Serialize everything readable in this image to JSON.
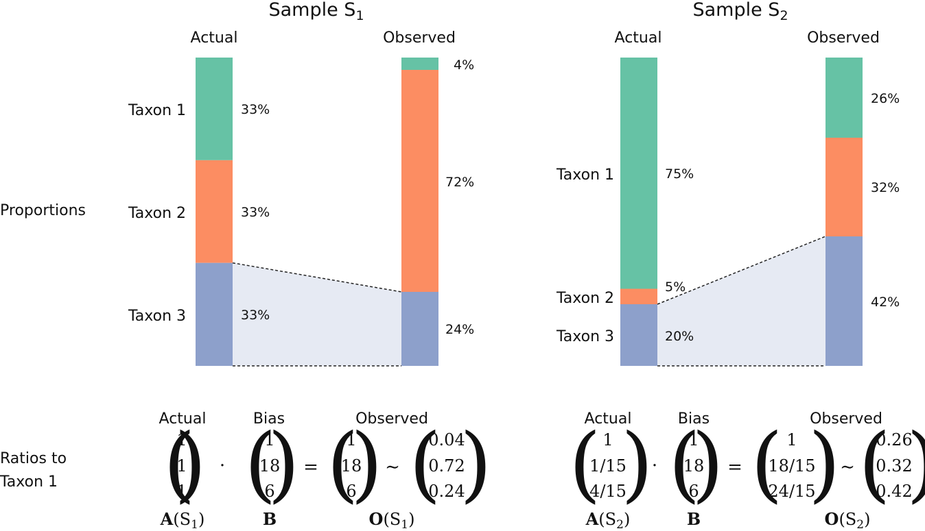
{
  "colors": {
    "taxon1": "#66c2a5",
    "taxon2": "#fc8d62",
    "taxon3": "#8da0cb",
    "shade": "#e6eaf3"
  },
  "row_labels": {
    "proportions": "Proportions",
    "ratios_line1": "Ratios to",
    "ratios_line2": "Taxon 1"
  },
  "samples": [
    {
      "title": "Sample S",
      "title_sub": "1",
      "actual_header": "Actual",
      "observed_header": "Observed",
      "taxa": [
        "Taxon 1",
        "Taxon 2",
        "Taxon 3"
      ],
      "actual_pct": [
        "33%",
        "33%",
        "33%"
      ],
      "actual_values": [
        0.333,
        0.333,
        0.334
      ],
      "observed_pct": [
        "4%",
        "72%",
        "24%"
      ],
      "observed_values": [
        0.04,
        0.72,
        0.24
      ],
      "eq": {
        "actual_header": "Actual",
        "bias_header": "Bias",
        "observed_header": "Observed",
        "actual": [
          "1",
          "1",
          "1"
        ],
        "bias": [
          "1",
          "18",
          "6"
        ],
        "observed": [
          "1",
          "18",
          "6"
        ],
        "observed_norm": [
          "0.04",
          "0.72",
          "0.24"
        ],
        "dot": "·",
        "equals": "=",
        "approx": "∼",
        "label_A": "A",
        "label_B": "B",
        "label_O": "O",
        "label_sample": "(S",
        "label_sub": "1",
        "label_close": ")"
      }
    },
    {
      "title": "Sample S",
      "title_sub": "2",
      "actual_header": "Actual",
      "observed_header": "Observed",
      "taxa": [
        "Taxon 1",
        "Taxon 2",
        "Taxon 3"
      ],
      "actual_pct": [
        "75%",
        "5%",
        "20%"
      ],
      "actual_values": [
        0.75,
        0.05,
        0.2
      ],
      "observed_pct": [
        "26%",
        "32%",
        "42%"
      ],
      "observed_values": [
        0.26,
        0.32,
        0.42
      ],
      "eq": {
        "actual_header": "Actual",
        "bias_header": "Bias",
        "observed_header": "Observed",
        "actual": [
          "1",
          "1/15",
          "4/15"
        ],
        "bias": [
          "1",
          "18",
          "6"
        ],
        "observed": [
          "1",
          "18/15",
          "24/15"
        ],
        "observed_norm": [
          "0.26",
          "0.32",
          "0.42"
        ],
        "dot": "·",
        "equals": "=",
        "approx": "∼",
        "label_A": "A",
        "label_B": "B",
        "label_O": "O",
        "label_sample": "(S",
        "label_sub": "2",
        "label_close": ")"
      }
    }
  ]
}
